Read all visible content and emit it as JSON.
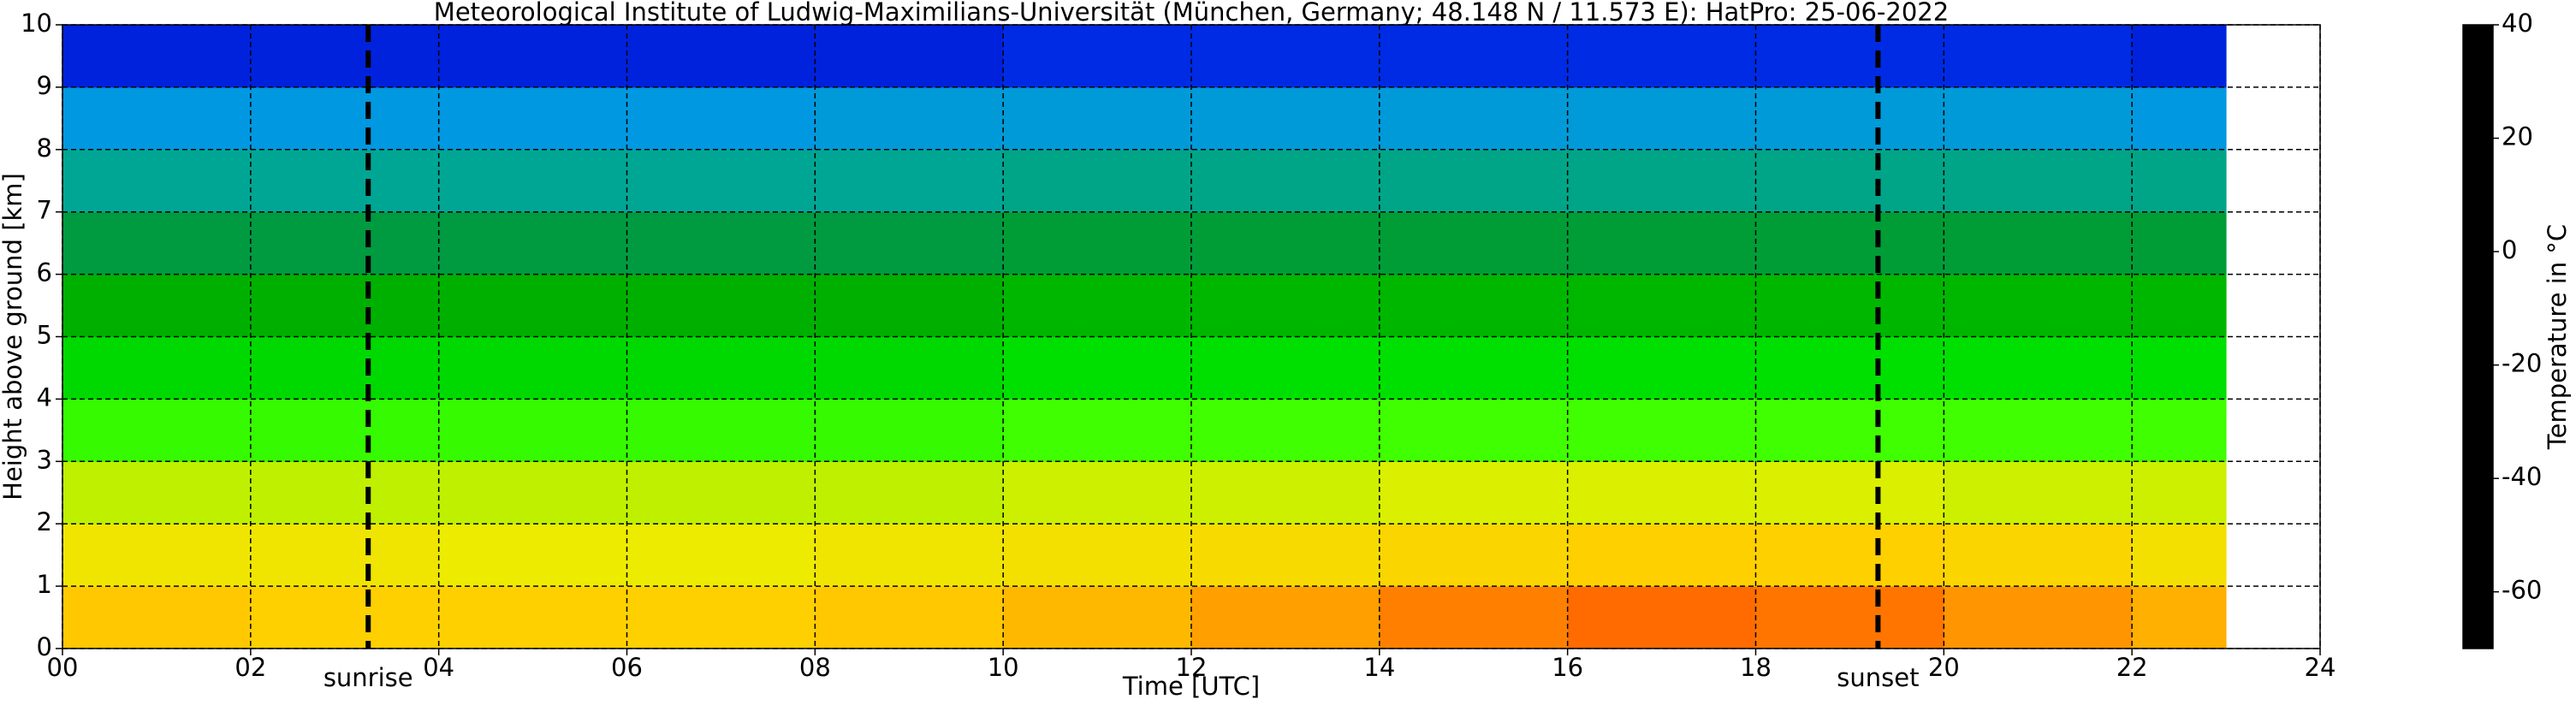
{
  "chart_data": {
    "type": "heatmap",
    "title": "Meteorological Institute of Ludwig-Maximilians-Universität (München, Germany; 48.148 N / 11.573 E):    HatPro: 25-06-2022",
    "xlabel": "Time [UTC]",
    "ylabel": "Height above ground [km]",
    "colorbar_label": "Temperature in $^\\circ$C",
    "x_edges": [
      0,
      2,
      4,
      6,
      8,
      10,
      12,
      14,
      16,
      18,
      20,
      22,
      23
    ],
    "y_edges": [
      0,
      1,
      2,
      3,
      4,
      5,
      6,
      7,
      8,
      9,
      10
    ],
    "values": [
      [
        13,
        12,
        12,
        12,
        13,
        15,
        18,
        21,
        23,
        22,
        19,
        16
      ],
      [
        8,
        8,
        7,
        7,
        8,
        9,
        10,
        11,
        12,
        12,
        11,
        9
      ],
      [
        3,
        3,
        3,
        3,
        3,
        4,
        4,
        5,
        5,
        5,
        4,
        4
      ],
      [
        -3,
        -3,
        -3,
        -3,
        -3,
        -2,
        -2,
        -2,
        -2,
        -2,
        -2,
        -2
      ],
      [
        -9,
        -9,
        -9,
        -9,
        -9,
        -8,
        -8,
        -8,
        -8,
        -8,
        -8,
        -8
      ],
      [
        -15,
        -15,
        -15,
        -15,
        -15,
        -14,
        -14,
        -14,
        -14,
        -14,
        -14,
        -14
      ],
      [
        -22,
        -22,
        -22,
        -22,
        -22,
        -21,
        -21,
        -21,
        -21,
        -21,
        -21,
        -21
      ],
      [
        -29,
        -29,
        -29,
        -29,
        -29,
        -28,
        -28,
        -28,
        -28,
        -28,
        -28,
        -28
      ],
      [
        -38,
        -38,
        -38,
        -38,
        -37,
        -37,
        -37,
        -37,
        -37,
        -37,
        -37,
        -38
      ],
      [
        -50,
        -50,
        -50,
        -50,
        -50,
        -49,
        -49,
        -49,
        -49,
        -49,
        -49,
        -50
      ]
    ],
    "xlim": [
      0,
      24
    ],
    "xticks": [
      {
        "value": 0,
        "label": "00"
      },
      {
        "value": 2,
        "label": "02"
      },
      {
        "value": 4,
        "label": "04"
      },
      {
        "value": 6,
        "label": "06"
      },
      {
        "value": 8,
        "label": "08"
      },
      10,
      12,
      14,
      16,
      18,
      20,
      22,
      24
    ],
    "ylim": [
      0,
      10
    ],
    "yticks": [
      0,
      1,
      2,
      3,
      4,
      5,
      6,
      7,
      8,
      9,
      10
    ],
    "clim": [
      -70,
      40
    ],
    "cticks": [
      -60,
      -40,
      -20,
      0,
      20,
      40
    ],
    "colorscale": [
      [
        -70,
        "#000000"
      ],
      [
        -67,
        "#2a0840"
      ],
      [
        -64,
        "#b01048"
      ],
      [
        -61,
        "#b01048"
      ],
      [
        -60,
        "#0000a0"
      ],
      [
        -52,
        "#0010d0"
      ],
      [
        -45,
        "#0050ff"
      ],
      [
        -38,
        "#0098e0"
      ],
      [
        -30,
        "#00a8a0"
      ],
      [
        -22,
        "#009a40"
      ],
      [
        -15,
        "#00b000"
      ],
      [
        -8,
        "#00e000"
      ],
      [
        -2,
        "#40ff00"
      ],
      [
        2,
        "#b0f000"
      ],
      [
        6,
        "#e8f000"
      ],
      [
        12,
        "#ffd000"
      ],
      [
        18,
        "#ffa000"
      ],
      [
        24,
        "#ff6000"
      ],
      [
        28,
        "#ff2000"
      ],
      [
        32,
        "#c83010"
      ],
      [
        36,
        "#c07050"
      ],
      [
        38,
        "#d0c0a0"
      ],
      [
        40,
        "#e8e8d8"
      ]
    ],
    "grid": true,
    "vlines": [
      {
        "x": 3.25,
        "label": "sunrise"
      },
      {
        "x": 19.3,
        "label": "sunset"
      }
    ]
  }
}
